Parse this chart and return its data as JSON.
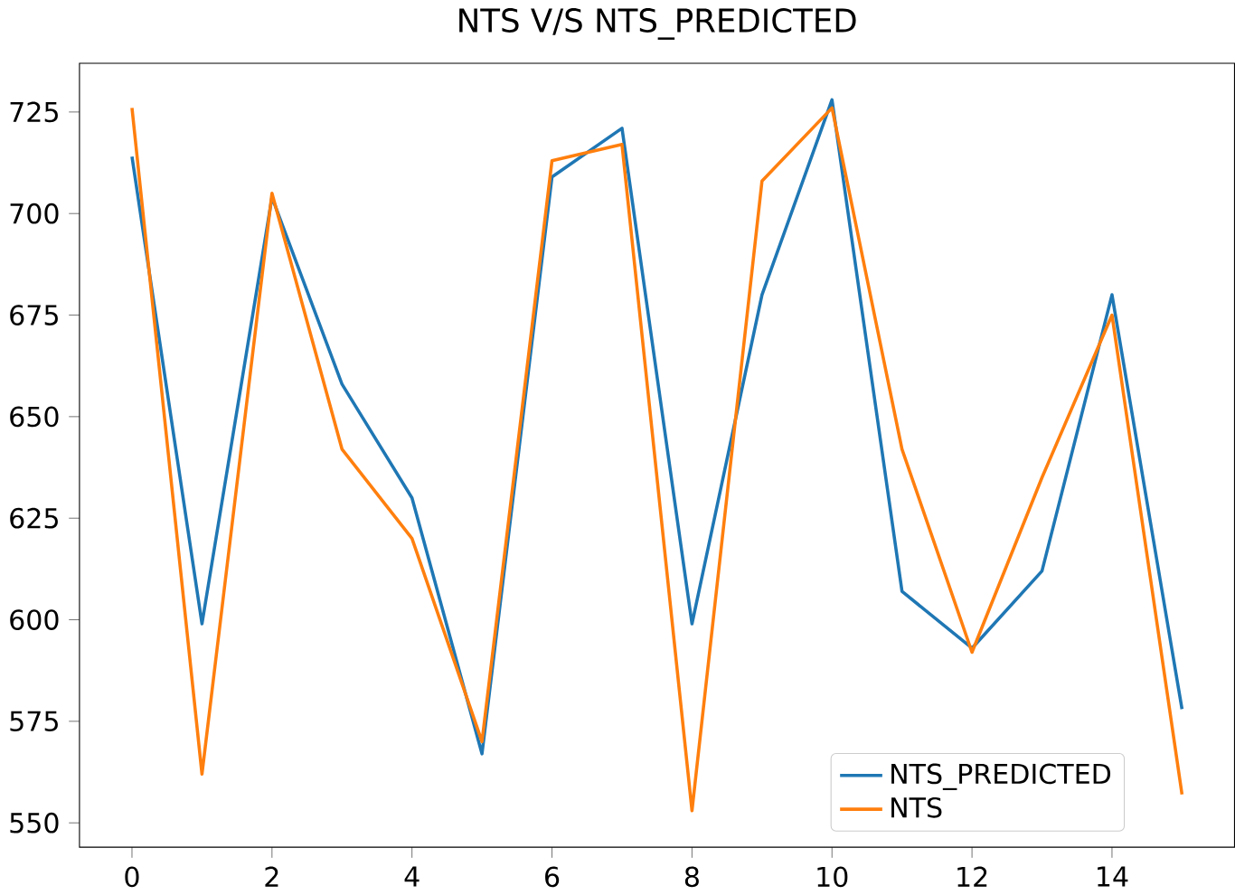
{
  "chart_data": {
    "type": "line",
    "title": "NTS V/S NTS_PREDICTED",
    "x": [
      0,
      1,
      2,
      3,
      4,
      5,
      6,
      7,
      8,
      9,
      10,
      11,
      12,
      13,
      14,
      15
    ],
    "series": [
      {
        "name": "NTS_PREDICTED",
        "color": "#1f77b4",
        "values": [
          714,
          599,
          704,
          658,
          630,
          567,
          709,
          721,
          599,
          680,
          728,
          607,
          593,
          612,
          680,
          578
        ]
      },
      {
        "name": "NTS",
        "color": "#ff7f0e",
        "values": [
          726,
          562,
          705,
          642,
          620,
          570,
          713,
          717,
          553,
          708,
          726,
          642,
          592,
          635,
          675,
          557
        ]
      }
    ],
    "xlim": [
      -0.75,
      15.75
    ],
    "ylim": [
      544,
      737
    ],
    "xticks": [
      0,
      2,
      4,
      6,
      8,
      10,
      12,
      14
    ],
    "yticks": [
      550,
      575,
      600,
      625,
      650,
      675,
      700,
      725
    ],
    "legend": "bottom right",
    "grid": false,
    "marker": "none",
    "line_style": "solid"
  }
}
